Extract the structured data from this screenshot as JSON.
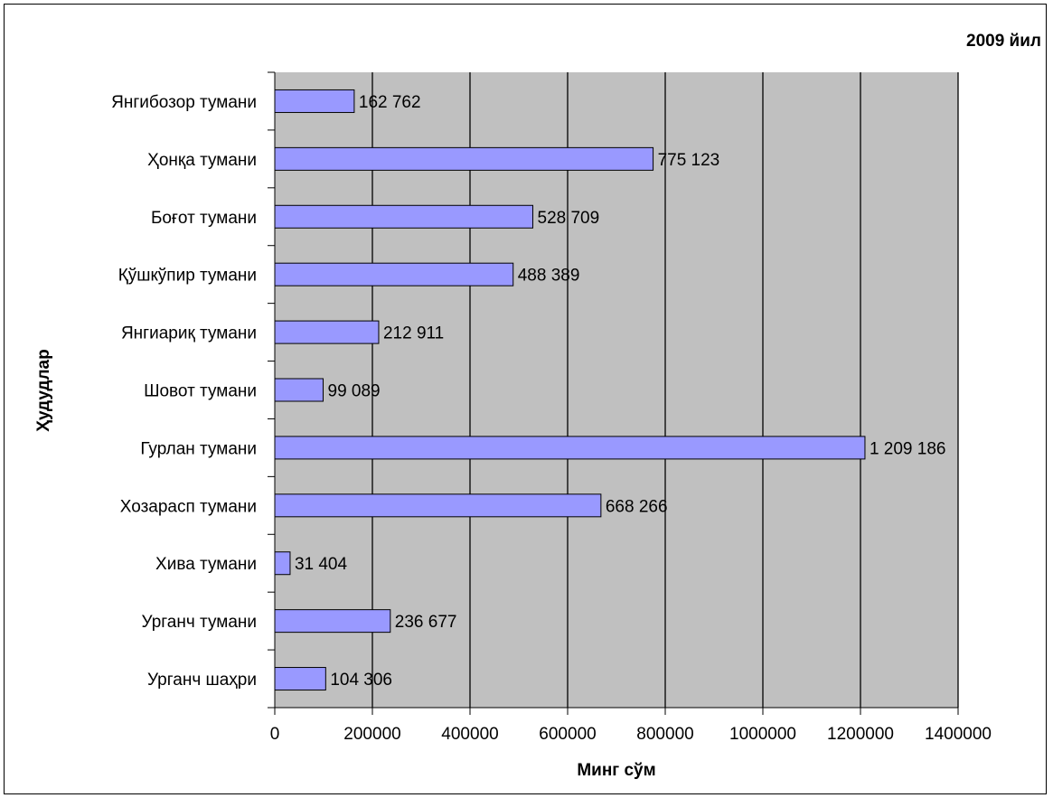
{
  "chart_data": {
    "type": "bar",
    "orientation": "horizontal",
    "title": "2009 йил",
    "xlabel": "Минг сўм",
    "ylabel": "Ҳудудлар",
    "categories": [
      "Янгибозор тумани",
      "Ҳонқа тумани",
      "Боғот тумани",
      "Қўшкўпир тумани",
      "Янгиариқ тумани",
      "Шовот тумани",
      "Гурлан тумани",
      "Хозарасп тумани",
      "Хива тумани",
      "Урганч тумани",
      "Урганч шаҳри"
    ],
    "values": [
      162762,
      775123,
      528709,
      488389,
      212911,
      99089,
      1209186,
      668266,
      31404,
      236677,
      104306
    ],
    "value_labels": [
      "162 762",
      "775 123",
      "528 709",
      "488 389",
      "212 911",
      "99 089",
      "1 209 186",
      "668 266",
      "31 404",
      "236 677",
      "104 306"
    ],
    "xlim": [
      0,
      1400000
    ],
    "xticks": [
      0,
      200000,
      400000,
      600000,
      800000,
      1000000,
      1200000,
      1400000
    ],
    "xtick_labels": [
      "0",
      "200000",
      "400000",
      "600000",
      "800000",
      "1000000",
      "1200000",
      "1400000"
    ],
    "grid": "vertical",
    "legend": "none",
    "colors": {
      "bar_fill": "#9999ff",
      "bar_stroke": "#000000",
      "plot_background": "#c0c0c0",
      "gridline": "#000000"
    }
  }
}
